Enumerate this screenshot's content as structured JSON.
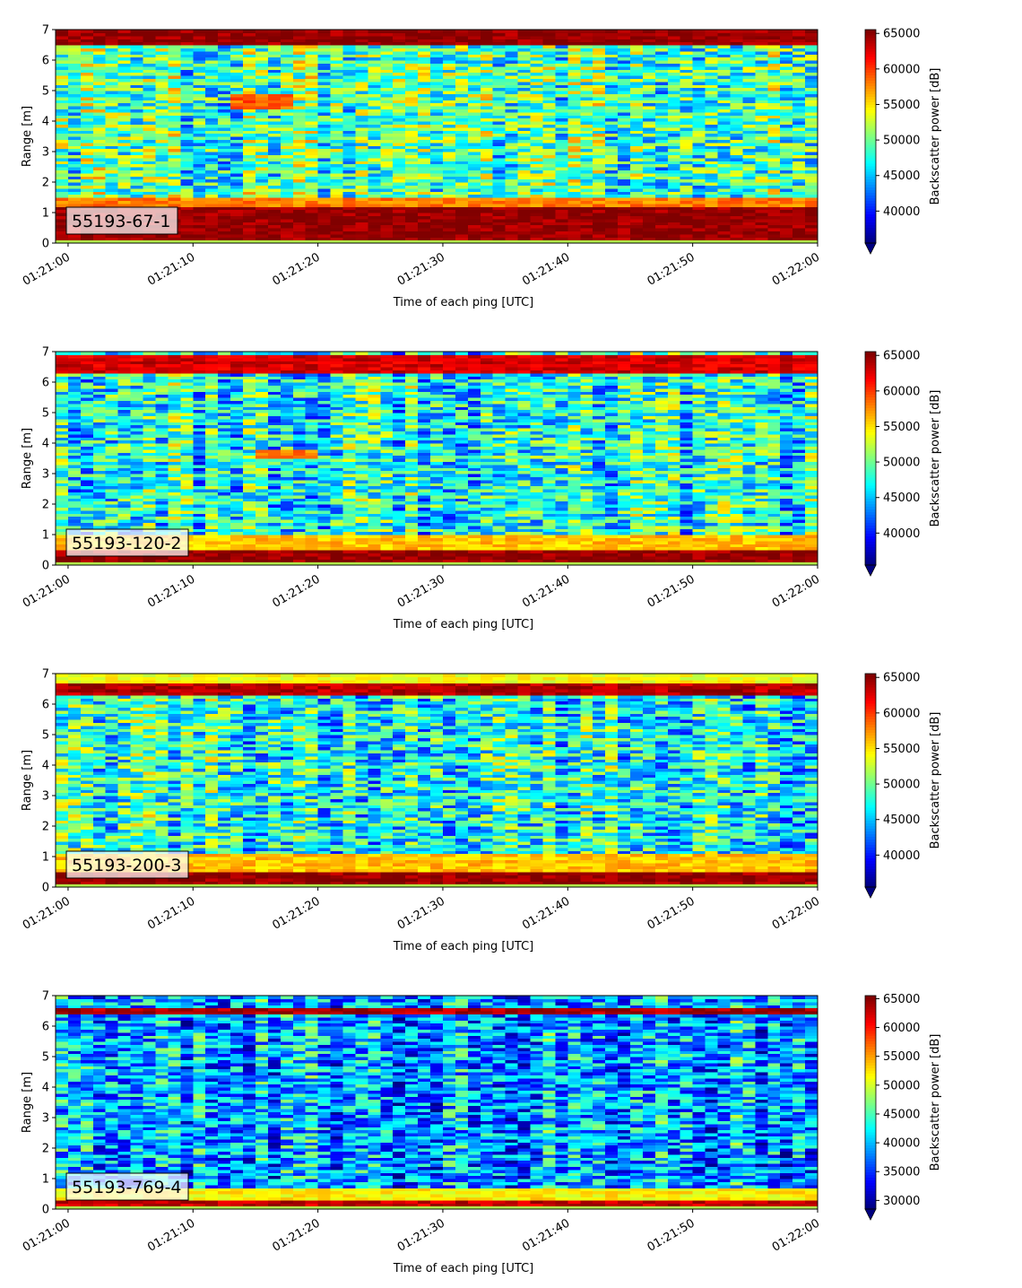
{
  "chart_data": [
    {
      "type": "heatmap",
      "label": "55193-67-1",
      "xlabel": "Time of each ping [UTC]",
      "ylabel": "Range [m]",
      "x_ticks": [
        "01:21:00",
        "01:21:10",
        "01:21:20",
        "01:21:30",
        "01:21:40",
        "01:21:50",
        "01:22:00"
      ],
      "xlim": [
        "01:20:59",
        "01:22:00"
      ],
      "y_ticks": [
        0,
        1,
        2,
        3,
        4,
        5,
        6,
        7
      ],
      "ylim": [
        0,
        7
      ],
      "colorbar": {
        "label": "Backscatter power [dB]",
        "min": 35500,
        "max": 65535,
        "ticks": [
          40000,
          45000,
          50000,
          55000,
          60000,
          65000
        ],
        "extend": "min",
        "colormap": "jet"
      },
      "features": [
        {
          "range_m": [
            0.15,
            1.2
          ],
          "level": 65000,
          "desc": "bottom echo"
        },
        {
          "range_m": [
            1.2,
            1.5
          ],
          "level": 58000
        },
        {
          "range_m": [
            6.5,
            7.0
          ],
          "level": 65000,
          "desc": "surface echo"
        },
        {
          "range_m": [
            4.4,
            4.9
          ],
          "time_s": [
            13,
            18
          ],
          "level": 59000
        }
      ]
    },
    {
      "type": "heatmap",
      "label": "55193-120-2",
      "xlabel": "Time of each ping [UTC]",
      "ylabel": "Range [m]",
      "x_ticks": [
        "01:21:00",
        "01:21:10",
        "01:21:20",
        "01:21:30",
        "01:21:40",
        "01:21:50",
        "01:22:00"
      ],
      "xlim": [
        "01:20:59",
        "01:22:00"
      ],
      "y_ticks": [
        0,
        1,
        2,
        3,
        4,
        5,
        6,
        7
      ],
      "ylim": [
        0,
        7
      ],
      "colorbar": {
        "label": "Backscatter power [dB]",
        "min": 35500,
        "max": 65535,
        "ticks": [
          40000,
          45000,
          50000,
          55000,
          60000,
          65000
        ],
        "extend": "min",
        "colormap": "jet"
      },
      "features": [
        {
          "range_m": [
            0.1,
            0.55
          ],
          "level": 65000,
          "desc": "bottom echo"
        },
        {
          "range_m": [
            0.55,
            1.0
          ],
          "level": 56000
        },
        {
          "range_m": [
            6.35,
            6.9
          ],
          "level": 63000,
          "desc": "surface echo"
        },
        {
          "range_m": [
            3.55,
            3.75
          ],
          "time_s": [
            15,
            20
          ],
          "level": 58000
        }
      ]
    },
    {
      "type": "heatmap",
      "label": "55193-200-3",
      "xlabel": "Time of each ping [UTC]",
      "ylabel": "Range [m]",
      "x_ticks": [
        "01:21:00",
        "01:21:10",
        "01:21:20",
        "01:21:30",
        "01:21:40",
        "01:21:50",
        "01:22:00"
      ],
      "xlim": [
        "01:20:59",
        "01:22:00"
      ],
      "y_ticks": [
        0,
        1,
        2,
        3,
        4,
        5,
        6,
        7
      ],
      "ylim": [
        0,
        7
      ],
      "colorbar": {
        "label": "Backscatter power [dB]",
        "min": 35500,
        "max": 65535,
        "ticks": [
          40000,
          45000,
          50000,
          55000,
          60000,
          65000
        ],
        "extend": "min",
        "colormap": "jet"
      },
      "features": [
        {
          "range_m": [
            0.1,
            0.5
          ],
          "level": 65000,
          "desc": "bottom echo"
        },
        {
          "range_m": [
            0.5,
            1.1
          ],
          "level": 56000
        },
        {
          "range_m": [
            6.35,
            6.75
          ],
          "level": 64000,
          "desc": "surface echo"
        },
        {
          "range_m": [
            6.75,
            7.0
          ],
          "level": 54000
        }
      ]
    },
    {
      "type": "heatmap",
      "label": "55193-769-4",
      "xlabel": "Time of each ping [UTC]",
      "ylabel": "Range [m]",
      "x_ticks": [
        "01:21:00",
        "01:21:10",
        "01:21:20",
        "01:21:30",
        "01:21:40",
        "01:21:50",
        "01:22:00"
      ],
      "xlim": [
        "01:20:59",
        "01:22:00"
      ],
      "y_ticks": [
        0,
        1,
        2,
        3,
        4,
        5,
        6,
        7
      ],
      "ylim": [
        0,
        7
      ],
      "colorbar": {
        "label": "Backscatter power [dB]",
        "min": 28500,
        "max": 65535,
        "ticks": [
          30000,
          35000,
          40000,
          45000,
          50000,
          55000,
          60000,
          65000
        ],
        "extend": "min",
        "colormap": "jet"
      },
      "features": [
        {
          "range_m": [
            0.15,
            0.3
          ],
          "level": 63000,
          "desc": "bottom echo"
        },
        {
          "range_m": [
            0.3,
            0.7
          ],
          "level": 52000
        },
        {
          "range_m": [
            6.4,
            6.6
          ],
          "level": 64000,
          "desc": "surface echo"
        }
      ]
    }
  ]
}
